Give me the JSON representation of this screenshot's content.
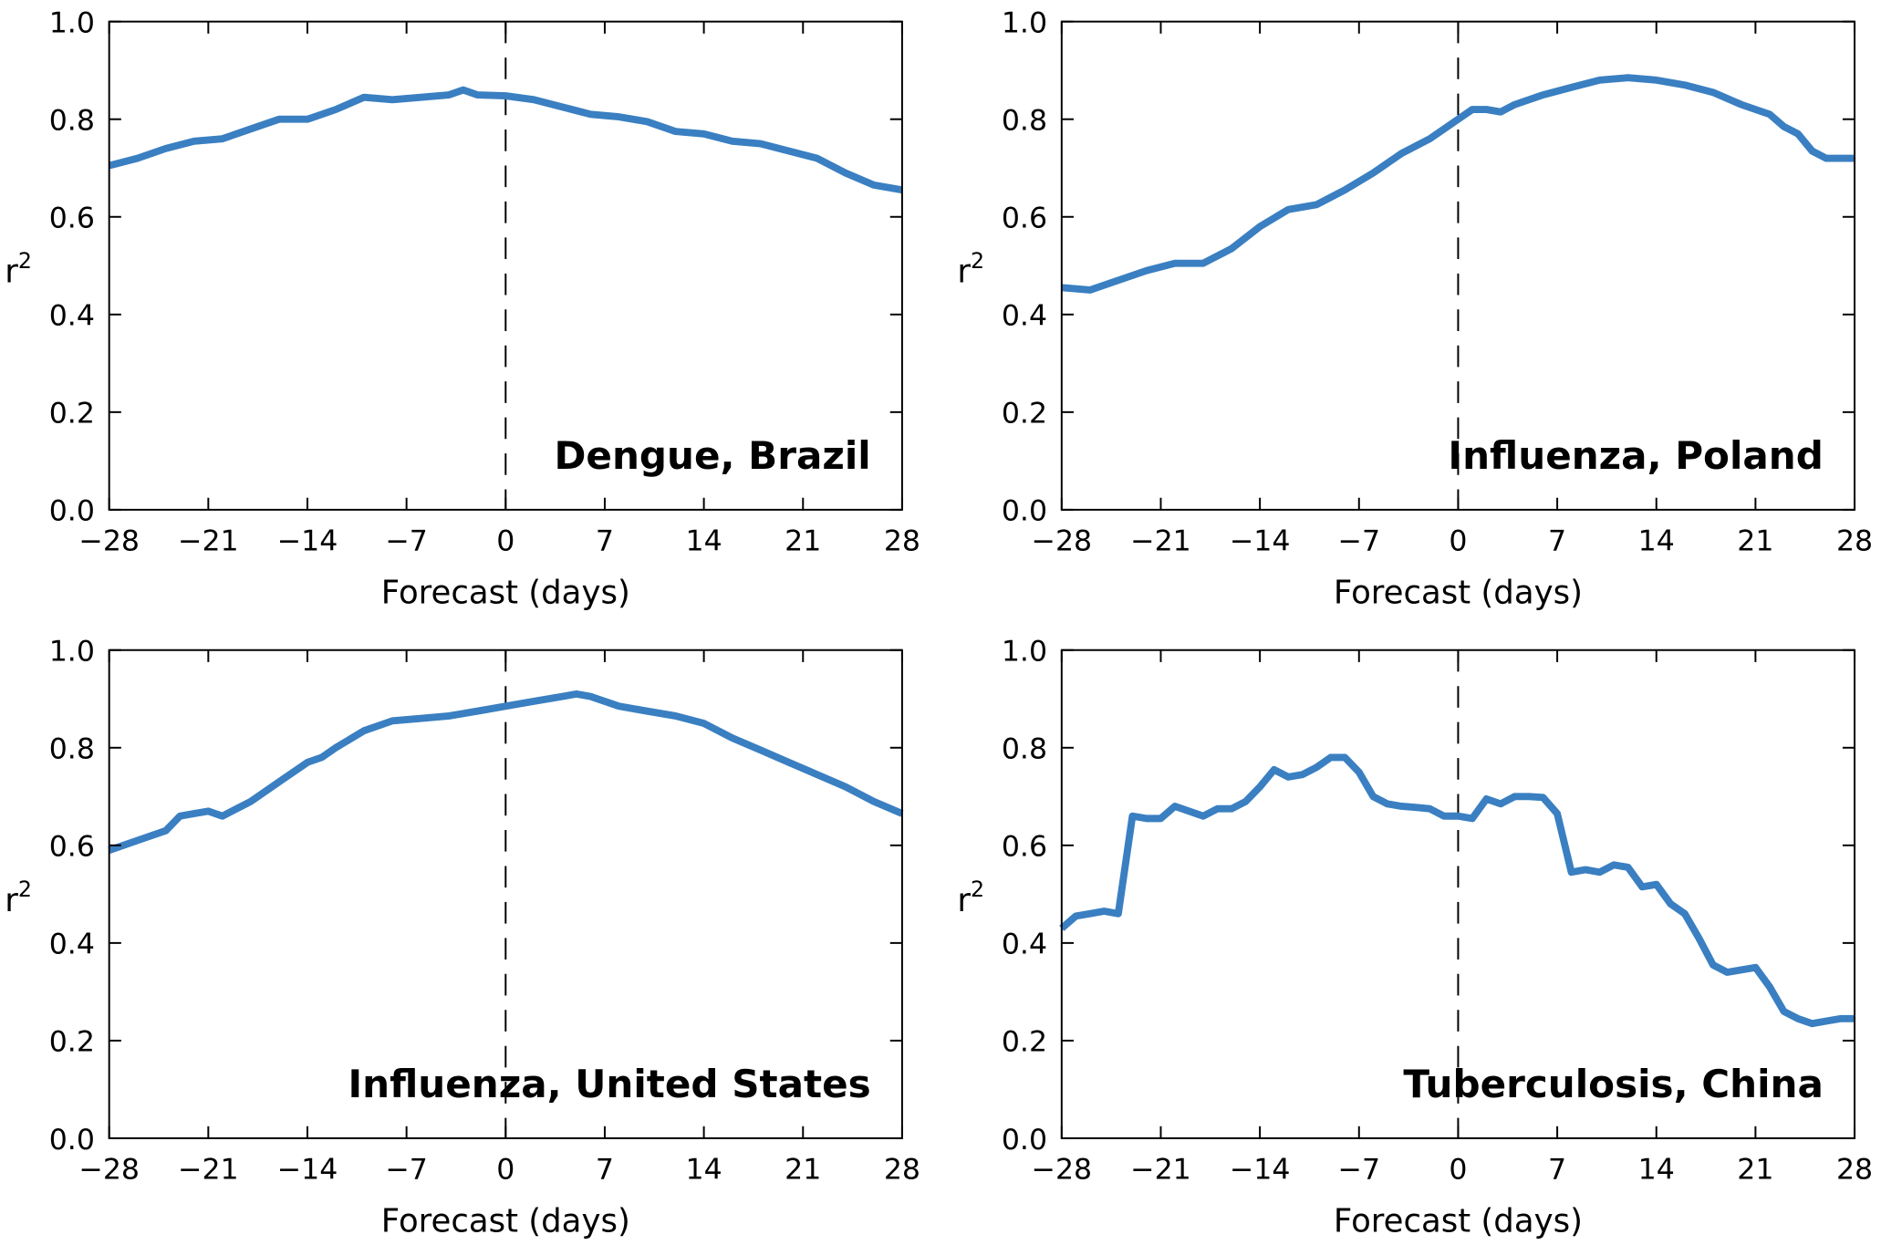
{
  "chart_data": [
    {
      "type": "line",
      "annotation": "Dengue, Brazil",
      "xlabel": "Forecast (days)",
      "ylabel": "r",
      "ylabel_superscript": "2",
      "xlim": [
        -28,
        28
      ],
      "ylim": [
        0,
        1
      ],
      "xticks": [
        "−28",
        "−21",
        "−14",
        "−7",
        "0",
        "7",
        "14",
        "21",
        "28"
      ],
      "yticks": [
        "0.0",
        "0.2",
        "0.4",
        "0.6",
        "0.8",
        "1.0"
      ],
      "vline_x": 0,
      "color": "#3a7fc1",
      "x": [
        -28,
        -26,
        -24,
        -22,
        -20,
        -18,
        -16,
        -14,
        -12,
        -10,
        -8,
        -6,
        -4,
        -3,
        -2,
        0,
        2,
        4,
        6,
        8,
        10,
        12,
        14,
        16,
        18,
        20,
        22,
        24,
        26,
        28
      ],
      "y": [
        0.705,
        0.72,
        0.74,
        0.755,
        0.76,
        0.78,
        0.8,
        0.8,
        0.82,
        0.845,
        0.84,
        0.845,
        0.85,
        0.86,
        0.85,
        0.848,
        0.84,
        0.825,
        0.81,
        0.805,
        0.795,
        0.775,
        0.77,
        0.755,
        0.75,
        0.735,
        0.72,
        0.69,
        0.665,
        0.655
      ]
    },
    {
      "type": "line",
      "annotation": "Influenza, Poland",
      "xlabel": "Forecast (days)",
      "ylabel": "r",
      "ylabel_superscript": "2",
      "xlim": [
        -28,
        28
      ],
      "ylim": [
        0,
        1
      ],
      "xticks": [
        "−28",
        "−21",
        "−14",
        "−7",
        "0",
        "7",
        "14",
        "21",
        "28"
      ],
      "yticks": [
        "0.0",
        "0.2",
        "0.4",
        "0.6",
        "0.8",
        "1.0"
      ],
      "vline_x": 0,
      "color": "#3a7fc1",
      "x": [
        -28,
        -26,
        -24,
        -22,
        -20,
        -18,
        -16,
        -14,
        -12,
        -10,
        -8,
        -6,
        -4,
        -2,
        0,
        1,
        2,
        3,
        4,
        6,
        8,
        10,
        12,
        14,
        16,
        18,
        20,
        22,
        23,
        24,
        25,
        26,
        28
      ],
      "y": [
        0.455,
        0.45,
        0.47,
        0.49,
        0.505,
        0.505,
        0.535,
        0.58,
        0.615,
        0.625,
        0.655,
        0.69,
        0.73,
        0.76,
        0.8,
        0.82,
        0.82,
        0.815,
        0.83,
        0.85,
        0.865,
        0.88,
        0.885,
        0.88,
        0.87,
        0.855,
        0.83,
        0.81,
        0.785,
        0.77,
        0.735,
        0.72,
        0.72
      ]
    },
    {
      "type": "line",
      "annotation": "Influenza, United States",
      "xlabel": "Forecast (days)",
      "ylabel": "r",
      "ylabel_superscript": "2",
      "xlim": [
        -28,
        28
      ],
      "ylim": [
        0,
        1
      ],
      "xticks": [
        "−28",
        "−21",
        "−14",
        "−7",
        "0",
        "7",
        "14",
        "21",
        "28"
      ],
      "yticks": [
        "0.0",
        "0.2",
        "0.4",
        "0.6",
        "0.8",
        "1.0"
      ],
      "vline_x": 0,
      "color": "#3a7fc1",
      "x": [
        -28,
        -26,
        -24,
        -23,
        -22,
        -21,
        -20,
        -18,
        -16,
        -14,
        -13,
        -12,
        -10,
        -8,
        -6,
        -4,
        -2,
        0,
        2,
        4,
        5,
        6,
        8,
        10,
        12,
        14,
        16,
        18,
        20,
        22,
        24,
        26,
        28
      ],
      "y": [
        0.59,
        0.61,
        0.63,
        0.66,
        0.665,
        0.67,
        0.66,
        0.69,
        0.73,
        0.77,
        0.78,
        0.8,
        0.835,
        0.855,
        0.86,
        0.865,
        0.875,
        0.885,
        0.895,
        0.905,
        0.91,
        0.905,
        0.885,
        0.875,
        0.865,
        0.85,
        0.82,
        0.795,
        0.77,
        0.745,
        0.72,
        0.69,
        0.665
      ]
    },
    {
      "type": "line",
      "annotation": "Tuberculosis, China",
      "xlabel": "Forecast (days)",
      "ylabel": "r",
      "ylabel_superscript": "2",
      "xlim": [
        -28,
        28
      ],
      "ylim": [
        0,
        1
      ],
      "xticks": [
        "−28",
        "−21",
        "−14",
        "−7",
        "0",
        "7",
        "14",
        "21",
        "28"
      ],
      "yticks": [
        "0.0",
        "0.2",
        "0.4",
        "0.6",
        "0.8",
        "1.0"
      ],
      "vline_x": 0,
      "color": "#3a7fc1",
      "x": [
        -28,
        -27,
        -26,
        -25,
        -24,
        -23,
        -22,
        -21,
        -20,
        -19,
        -18,
        -17,
        -16,
        -15,
        -14,
        -13,
        -12,
        -11,
        -10,
        -9,
        -8,
        -7,
        -6,
        -5,
        -4,
        -3,
        -2,
        -1,
        0,
        1,
        2,
        3,
        4,
        5,
        6,
        7,
        8,
        9,
        10,
        11,
        12,
        13,
        14,
        15,
        16,
        17,
        18,
        19,
        20,
        21,
        22,
        23,
        24,
        25,
        26,
        27,
        28
      ],
      "y": [
        0.43,
        0.455,
        0.46,
        0.465,
        0.46,
        0.66,
        0.655,
        0.655,
        0.68,
        0.67,
        0.66,
        0.675,
        0.675,
        0.69,
        0.72,
        0.755,
        0.74,
        0.745,
        0.76,
        0.78,
        0.78,
        0.75,
        0.7,
        0.685,
        0.68,
        0.678,
        0.675,
        0.66,
        0.66,
        0.655,
        0.695,
        0.685,
        0.7,
        0.7,
        0.698,
        0.665,
        0.545,
        0.55,
        0.545,
        0.56,
        0.555,
        0.515,
        0.52,
        0.48,
        0.46,
        0.41,
        0.355,
        0.34,
        0.345,
        0.35,
        0.31,
        0.26,
        0.245,
        0.235,
        0.24,
        0.245,
        0.245
      ]
    }
  ]
}
